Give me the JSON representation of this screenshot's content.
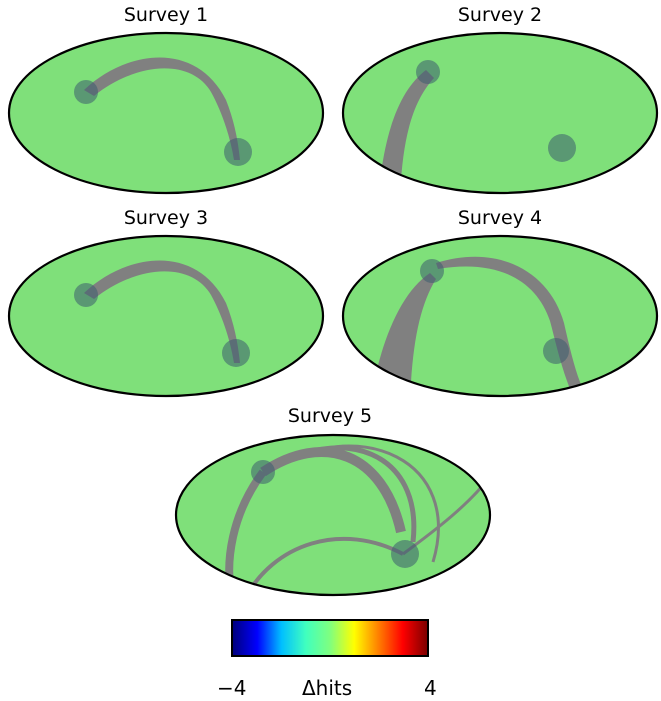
{
  "panels": [
    {
      "title": "Survey 1"
    },
    {
      "title": "Survey 2"
    },
    {
      "title": "Survey 3"
    },
    {
      "title": "Survey 4"
    },
    {
      "title": "Survey 5"
    }
  ],
  "colorbar": {
    "min_label": "−4",
    "max_label": "4",
    "label": "Δhits",
    "colors": [
      "#00007f",
      "#0000ff",
      "#00bfff",
      "#40ffbf",
      "#7fff7f",
      "#ffff00",
      "#ff7f00",
      "#ff0000",
      "#7f0000"
    ]
  },
  "colors": {
    "map_fill": "#7fe07a",
    "masked_region": "#808080",
    "outline": "#000000"
  }
}
